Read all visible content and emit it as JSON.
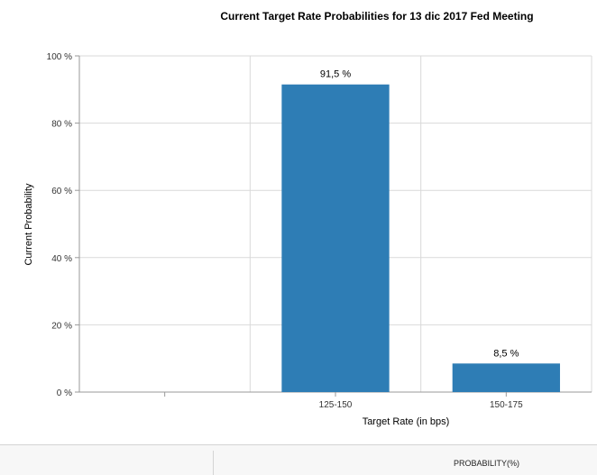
{
  "chart_data": {
    "type": "bar",
    "title": "Current Target Rate Probabilities for 13 dic 2017 Fed Meeting",
    "xlabel": "Target Rate (in bps)",
    "ylabel": "Current Probability",
    "categories": [
      "",
      "125-150",
      "150-175"
    ],
    "values": [
      null,
      91.5,
      8.5
    ],
    "value_labels": [
      "",
      "91,5 %",
      "8,5 %"
    ],
    "ylim": [
      0,
      100
    ],
    "yticks": [
      0,
      20,
      40,
      60,
      80,
      100
    ],
    "ytick_labels": [
      "0 %",
      "20 %",
      "40 %",
      "60 %",
      "80 %",
      "100 %"
    ],
    "grid": true,
    "bar_color": "#2e7db5"
  },
  "table": {
    "column_header": "PROBABILITY(%)"
  }
}
